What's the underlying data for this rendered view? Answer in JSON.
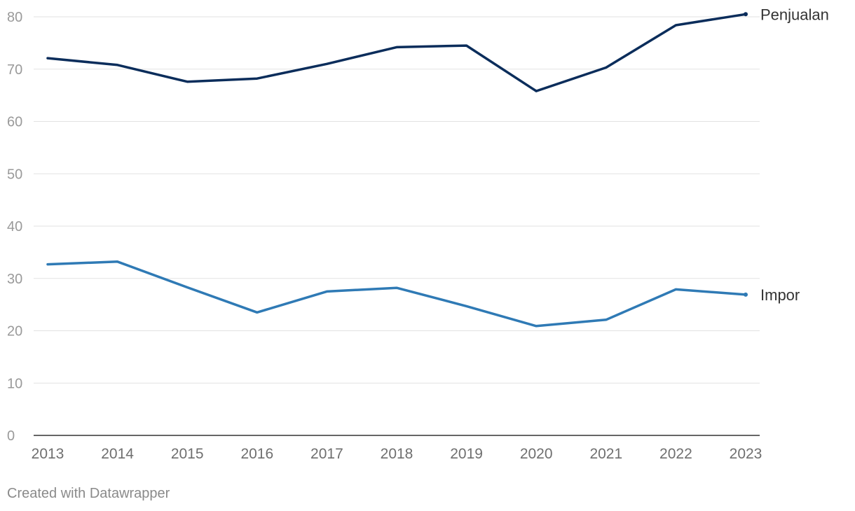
{
  "chart_data": {
    "type": "line",
    "title": "",
    "xlabel": "",
    "ylabel": "",
    "x": [
      "2013",
      "2014",
      "2015",
      "2016",
      "2017",
      "2018",
      "2019",
      "2020",
      "2021",
      "2022",
      "2023"
    ],
    "ylim": [
      0,
      80
    ],
    "yticks": [
      "0",
      "10",
      "20",
      "30",
      "40",
      "50",
      "60",
      "70",
      "80"
    ],
    "grid": true,
    "legend": "direct-labels-right",
    "series": [
      {
        "name": "Penjualan",
        "values": [
          72.1,
          70.8,
          67.6,
          68.2,
          71.0,
          74.2,
          74.5,
          65.8,
          70.3,
          78.4,
          80.5
        ],
        "color": "#0b2d5b"
      },
      {
        "name": "Impor",
        "values": [
          32.7,
          33.2,
          28.3,
          23.5,
          27.5,
          28.2,
          24.7,
          20.9,
          22.1,
          27.9,
          26.9
        ],
        "color": "#2f7ab5"
      }
    ]
  },
  "colors": {
    "grid": "#e2e2e2",
    "axis": "#333333",
    "tick_text": "#9a9a9a",
    "x_tick_text": "#6f6f6f",
    "label_text": "#333333"
  },
  "footer": {
    "text": "Created with Datawrapper"
  }
}
